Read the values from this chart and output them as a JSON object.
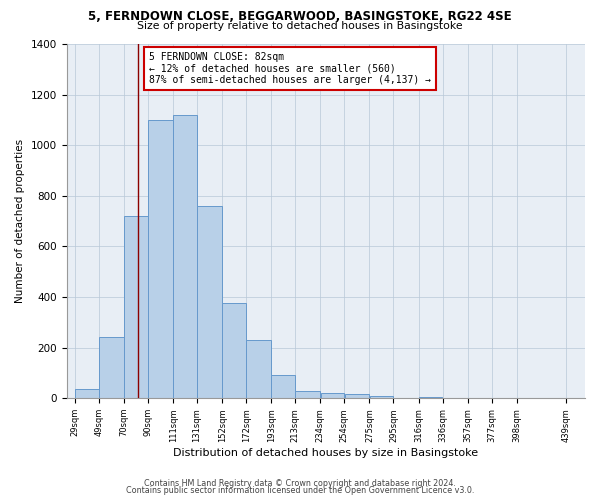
{
  "title_line1": "5, FERNDOWN CLOSE, BEGGARWOOD, BASINGSTOKE, RG22 4SE",
  "title_line2": "Size of property relative to detached houses in Basingstoke",
  "xlabel": "Distribution of detached houses by size in Basingstoke",
  "ylabel": "Number of detached properties",
  "bar_left_edges": [
    29,
    49,
    70,
    90,
    111,
    131,
    152,
    172,
    193,
    213,
    234,
    254,
    275,
    295,
    316,
    336,
    357,
    377,
    398,
    419
  ],
  "bar_heights": [
    35,
    240,
    720,
    1100,
    1120,
    760,
    375,
    230,
    90,
    30,
    20,
    15,
    10,
    0,
    5,
    0,
    0,
    0,
    0,
    0
  ],
  "bar_widths": [
    20,
    21,
    20,
    21,
    20,
    21,
    20,
    21,
    20,
    21,
    20,
    21,
    20,
    21,
    20,
    21,
    20,
    21,
    20,
    20
  ],
  "bar_color": "#b8d0e8",
  "bar_edge_color": "#6699cc",
  "x_tick_labels": [
    "29sqm",
    "49sqm",
    "70sqm",
    "90sqm",
    "111sqm",
    "131sqm",
    "152sqm",
    "172sqm",
    "193sqm",
    "213sqm",
    "234sqm",
    "254sqm",
    "275sqm",
    "295sqm",
    "316sqm",
    "336sqm",
    "357sqm",
    "377sqm",
    "398sqm",
    "439sqm"
  ],
  "x_tick_positions": [
    29,
    49,
    70,
    90,
    111,
    131,
    152,
    172,
    193,
    213,
    234,
    254,
    275,
    295,
    316,
    336,
    357,
    377,
    398,
    439
  ],
  "ylim": [
    0,
    1400
  ],
  "yticks": [
    0,
    200,
    400,
    600,
    800,
    1000,
    1200,
    1400
  ],
  "vline_x": 82,
  "vline_color": "#8b0000",
  "annotation_title": "5 FERNDOWN CLOSE: 82sqm",
  "annotation_line1": "← 12% of detached houses are smaller (560)",
  "annotation_line2": "87% of semi-detached houses are larger (4,137) →",
  "annotation_box_facecolor": "#ffffff",
  "annotation_box_edgecolor": "#cc0000",
  "footer_line1": "Contains HM Land Registry data © Crown copyright and database right 2024.",
  "footer_line2": "Contains public sector information licensed under the Open Government Licence v3.0.",
  "background_color": "#ffffff",
  "plot_background": "#e8eef5"
}
